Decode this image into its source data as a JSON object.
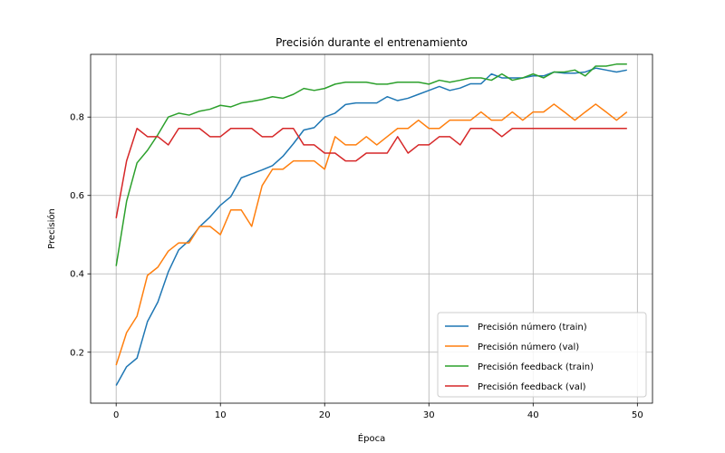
{
  "chart_data": {
    "type": "line",
    "title": "Precisión durante el entrenamiento",
    "xlabel": "Época",
    "ylabel": "Precisión",
    "xlim": [
      -2.45,
      51.45
    ],
    "ylim": [
      0.07,
      0.96
    ],
    "xticks": [
      0,
      10,
      20,
      30,
      40,
      50
    ],
    "yticks": [
      0.2,
      0.4,
      0.6,
      0.8
    ],
    "xtick_labels": [
      "0",
      "10",
      "20",
      "30",
      "40",
      "50"
    ],
    "ytick_labels": [
      "0.2",
      "0.4",
      "0.6",
      "0.8"
    ],
    "grid": true,
    "legend_position": "lower-right",
    "x": [
      0,
      1,
      2,
      3,
      4,
      5,
      6,
      7,
      8,
      9,
      10,
      11,
      12,
      13,
      14,
      15,
      16,
      17,
      18,
      19,
      20,
      21,
      22,
      23,
      24,
      25,
      26,
      27,
      28,
      29,
      30,
      31,
      32,
      33,
      34,
      35,
      36,
      37,
      38,
      39,
      40,
      41,
      42,
      43,
      44,
      45,
      46,
      47,
      48,
      49
    ],
    "series": [
      {
        "name": "Precisión número (train)",
        "color": "#1f77b4",
        "values": [
          0.115,
          0.163,
          0.185,
          0.278,
          0.328,
          0.405,
          0.461,
          0.485,
          0.52,
          0.545,
          0.575,
          0.597,
          0.645,
          0.655,
          0.665,
          0.676,
          0.7,
          0.732,
          0.767,
          0.773,
          0.8,
          0.81,
          0.832,
          0.836,
          0.836,
          0.836,
          0.852,
          0.842,
          0.848,
          0.858,
          0.868,
          0.878,
          0.868,
          0.874,
          0.885,
          0.885,
          0.91,
          0.9,
          0.9,
          0.9,
          0.905,
          0.905,
          0.915,
          0.912,
          0.912,
          0.915,
          0.925,
          0.92,
          0.915,
          0.92
        ]
      },
      {
        "name": "Precisión número (val)",
        "color": "#ff7f0e",
        "values": [
          0.167,
          0.25,
          0.292,
          0.396,
          0.417,
          0.458,
          0.479,
          0.479,
          0.521,
          0.521,
          0.5,
          0.563,
          0.563,
          0.521,
          0.625,
          0.667,
          0.667,
          0.688,
          0.688,
          0.688,
          0.667,
          0.75,
          0.729,
          0.729,
          0.75,
          0.729,
          0.75,
          0.771,
          0.771,
          0.792,
          0.771,
          0.771,
          0.792,
          0.792,
          0.792,
          0.813,
          0.792,
          0.792,
          0.813,
          0.792,
          0.813,
          0.813,
          0.833,
          0.813,
          0.792,
          0.813,
          0.833,
          0.813,
          0.792,
          0.813
        ]
      },
      {
        "name": "Precisión feedback (train)",
        "color": "#2ca02c",
        "values": [
          0.42,
          0.585,
          0.683,
          0.715,
          0.755,
          0.8,
          0.81,
          0.805,
          0.815,
          0.82,
          0.83,
          0.826,
          0.836,
          0.84,
          0.845,
          0.852,
          0.848,
          0.858,
          0.873,
          0.868,
          0.873,
          0.884,
          0.889,
          0.889,
          0.889,
          0.884,
          0.884,
          0.889,
          0.889,
          0.889,
          0.884,
          0.894,
          0.889,
          0.894,
          0.9,
          0.9,
          0.894,
          0.91,
          0.894,
          0.9,
          0.91,
          0.9,
          0.915,
          0.915,
          0.92,
          0.905,
          0.93,
          0.93,
          0.935,
          0.935
        ]
      },
      {
        "name": "Precisión feedback (val)",
        "color": "#d62728",
        "values": [
          0.542,
          0.688,
          0.771,
          0.75,
          0.75,
          0.729,
          0.771,
          0.771,
          0.771,
          0.75,
          0.75,
          0.771,
          0.771,
          0.771,
          0.75,
          0.75,
          0.771,
          0.771,
          0.729,
          0.729,
          0.708,
          0.708,
          0.688,
          0.688,
          0.708,
          0.708,
          0.708,
          0.75,
          0.708,
          0.729,
          0.729,
          0.75,
          0.75,
          0.729,
          0.771,
          0.771,
          0.771,
          0.75,
          0.771,
          0.771,
          0.771,
          0.771,
          0.771,
          0.771,
          0.771,
          0.771,
          0.771,
          0.771,
          0.771,
          0.771
        ]
      }
    ]
  }
}
